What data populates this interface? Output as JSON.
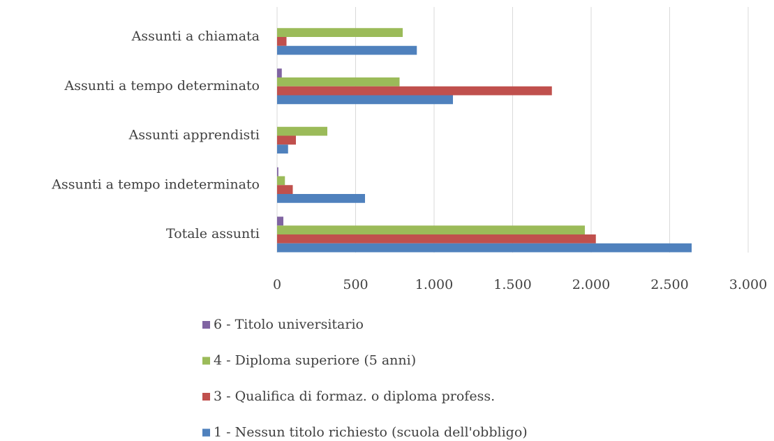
{
  "chart_data": {
    "type": "bar",
    "orientation": "horizontal",
    "categories": [
      "Assunti a chiamata",
      "Assunti a tempo determinato",
      "Assunti apprendisti",
      "Assunti a tempo indeterminato",
      "Totale assunti"
    ],
    "series": [
      {
        "name": "6 - Titolo universitario",
        "color": "#8064a2",
        "values": [
          0,
          30,
          0,
          8,
          40
        ]
      },
      {
        "name": "4 - Diploma superiore (5 anni)",
        "color": "#9bbb59",
        "values": [
          800,
          780,
          320,
          50,
          1960
        ]
      },
      {
        "name": "3 - Qualifica di formaz. o diploma profess.",
        "color": "#c0504d",
        "values": [
          60,
          1750,
          120,
          100,
          2030
        ]
      },
      {
        "name": "1 - Nessun titolo richiesto (scuola dell'obbligo)",
        "color": "#4f81bd",
        "values": [
          890,
          1120,
          70,
          560,
          2640
        ]
      }
    ],
    "xlim": [
      0,
      3000
    ],
    "xticks": [
      0,
      500,
      {
        "value": 1000,
        "label": "1.000"
      },
      {
        "value": 1500,
        "label": "1.500"
      },
      {
        "value": 2000,
        "label": "2.000"
      },
      {
        "value": 2500,
        "label": "2.500"
      },
      {
        "value": 3000,
        "label": "3.000"
      }
    ],
    "grid": true,
    "legend": "bottom"
  }
}
